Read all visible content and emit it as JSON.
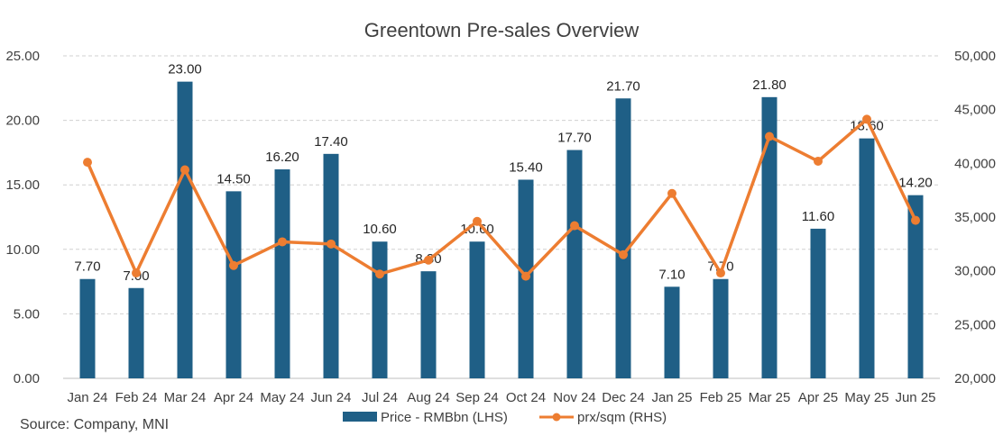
{
  "source": "Source: Company, MNI",
  "chart_data": {
    "type": "bar",
    "title": "Greentown Pre-sales Overview",
    "categories": [
      "Jan 24",
      "Feb 24",
      "Mar 24",
      "Apr 24",
      "May 24",
      "Jun 24",
      "Jul 24",
      "Aug 24",
      "Sep 24",
      "Oct 24",
      "Nov 24",
      "Dec 24",
      "Jan 25",
      "Feb 25",
      "Mar 25",
      "Apr 25",
      "May 25",
      "Jun 25"
    ],
    "series": [
      {
        "name": "Price - RMBbn (LHS)",
        "type": "bar",
        "axis": "left",
        "color": "#1f5f86",
        "values": [
          7.7,
          7.0,
          23.0,
          14.5,
          16.2,
          17.4,
          10.6,
          8.3,
          10.6,
          15.4,
          17.7,
          21.7,
          7.1,
          7.7,
          21.8,
          11.6,
          18.6,
          14.2
        ],
        "labels": [
          "7.70",
          "7.00",
          "23.00",
          "14.50",
          "16.20",
          "17.40",
          "10.60",
          "8.30",
          "10.60",
          "15.40",
          "17.70",
          "21.70",
          "7.10",
          "7.70",
          "21.80",
          "11.60",
          "18.60",
          "14.20"
        ]
      },
      {
        "name": "prx/sqm (RHS)",
        "type": "line",
        "axis": "right",
        "color": "#ed7d31",
        "values": [
          40100,
          29800,
          39400,
          30500,
          32700,
          32500,
          29700,
          31000,
          34600,
          29500,
          34200,
          31500,
          37200,
          29800,
          42500,
          40200,
          44100,
          34700
        ]
      }
    ],
    "y_left": {
      "min": 0,
      "max": 25,
      "ticks": [
        "0.00",
        "5.00",
        "10.00",
        "15.00",
        "20.00",
        "25.00"
      ]
    },
    "y_right": {
      "min": 20000,
      "max": 50000,
      "ticks": [
        "20,000",
        "25,000",
        "30,000",
        "35,000",
        "40,000",
        "45,000",
        "50,000"
      ]
    },
    "grid": true,
    "legend": "bottom"
  }
}
